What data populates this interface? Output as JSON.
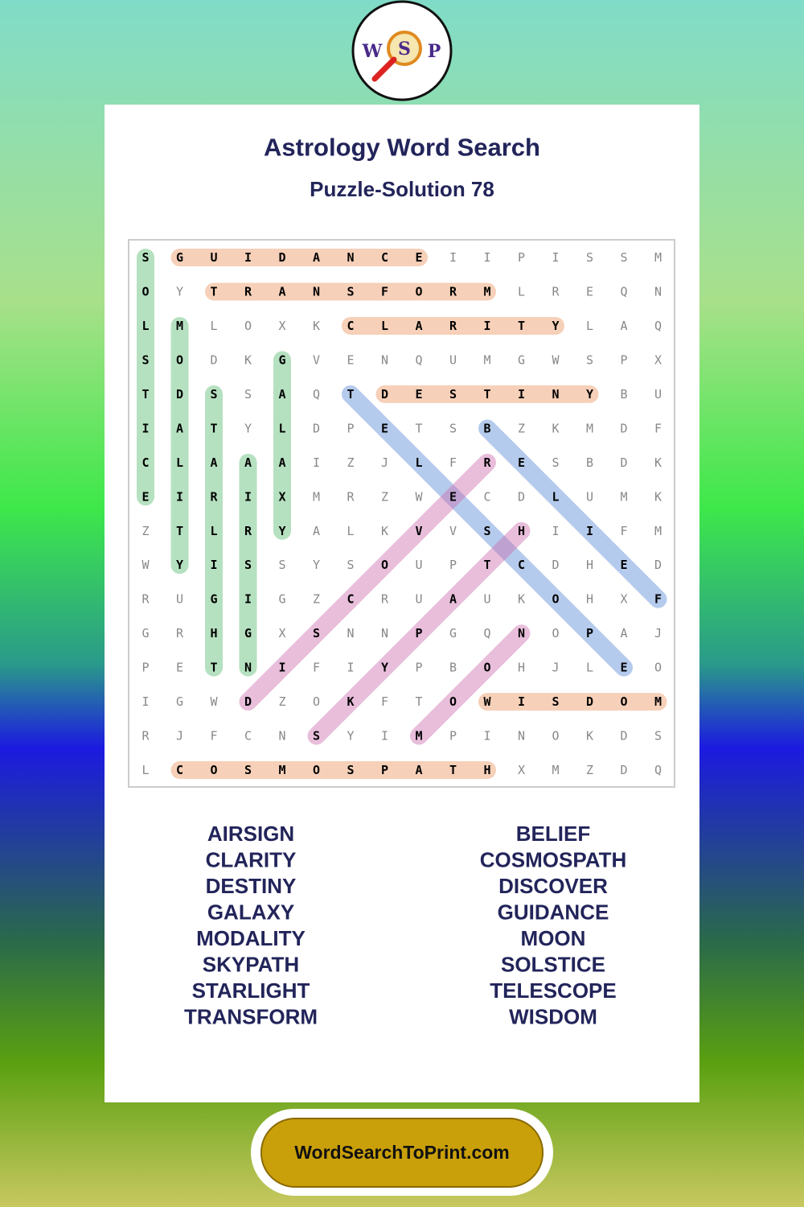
{
  "logo": {
    "letters": [
      "W",
      "S",
      "P"
    ]
  },
  "header": {
    "title": "Astrology Word Search",
    "subtitle": "Puzzle-Solution 78"
  },
  "grid": {
    "rows": [
      [
        "S",
        "G",
        "U",
        "I",
        "D",
        "A",
        "N",
        "C",
        "E",
        "I",
        "I",
        "P",
        "I",
        "S",
        "S",
        "M"
      ],
      [
        "O",
        "Y",
        "T",
        "R",
        "A",
        "N",
        "S",
        "F",
        "O",
        "R",
        "M",
        "L",
        "R",
        "E",
        "Q",
        "N"
      ],
      [
        "L",
        "M",
        "L",
        "O",
        "X",
        "K",
        "C",
        "L",
        "A",
        "R",
        "I",
        "T",
        "Y",
        "L",
        "A",
        "Q"
      ],
      [
        "S",
        "O",
        "D",
        "K",
        "G",
        "V",
        "E",
        "N",
        "Q",
        "U",
        "M",
        "G",
        "W",
        "S",
        "P",
        "X"
      ],
      [
        "T",
        "D",
        "S",
        "S",
        "A",
        "Q",
        "T",
        "D",
        "E",
        "S",
        "T",
        "I",
        "N",
        "Y",
        "B",
        "U"
      ],
      [
        "I",
        "A",
        "T",
        "Y",
        "L",
        "D",
        "P",
        "E",
        "T",
        "S",
        "B",
        "Z",
        "K",
        "M",
        "D",
        "F"
      ],
      [
        "C",
        "L",
        "A",
        "A",
        "A",
        "I",
        "Z",
        "J",
        "L",
        "F",
        "R",
        "E",
        "S",
        "B",
        "D",
        "K"
      ],
      [
        "E",
        "I",
        "R",
        "I",
        "X",
        "M",
        "R",
        "Z",
        "W",
        "E",
        "C",
        "D",
        "L",
        "U",
        "M",
        "K"
      ],
      [
        "Z",
        "T",
        "L",
        "R",
        "Y",
        "A",
        "L",
        "K",
        "V",
        "V",
        "S",
        "H",
        "I",
        "I",
        "F",
        "M"
      ],
      [
        "W",
        "Y",
        "I",
        "S",
        "S",
        "Y",
        "S",
        "O",
        "U",
        "P",
        "T",
        "C",
        "D",
        "H",
        "E",
        "D"
      ],
      [
        "R",
        "U",
        "G",
        "I",
        "G",
        "Z",
        "C",
        "R",
        "U",
        "A",
        "U",
        "K",
        "O",
        "H",
        "X",
        "F"
      ],
      [
        "G",
        "R",
        "H",
        "G",
        "X",
        "S",
        "N",
        "N",
        "P",
        "G",
        "Q",
        "N",
        "O",
        "P",
        "A",
        "J"
      ],
      [
        "P",
        "E",
        "T",
        "N",
        "I",
        "F",
        "I",
        "Y",
        "P",
        "B",
        "O",
        "H",
        "J",
        "L",
        "E",
        "O"
      ],
      [
        "I",
        "G",
        "W",
        "D",
        "Z",
        "O",
        "K",
        "F",
        "T",
        "O",
        "W",
        "I",
        "S",
        "D",
        "O",
        "M"
      ],
      [
        "R",
        "J",
        "F",
        "C",
        "N",
        "S",
        "Y",
        "I",
        "M",
        "P",
        "I",
        "N",
        "O",
        "K",
        "D",
        "S"
      ],
      [
        "L",
        "C",
        "O",
        "S",
        "M",
        "O",
        "S",
        "P",
        "A",
        "T",
        "H",
        "X",
        "M",
        "Z",
        "D",
        "Q"
      ]
    ]
  },
  "words": {
    "left": [
      "AIRSIGN",
      "CLARITY",
      "DESTINY",
      "GALAXY",
      "MODALITY",
      "SKYPATH",
      "STARLIGHT",
      "TRANSFORM"
    ],
    "right": [
      "BELIEF",
      "COSMOSPATH",
      "DISCOVER",
      "GUIDANCE",
      "MOON",
      "SOLSTICE",
      "TELESCOPE",
      "WISDOM"
    ]
  },
  "footer": {
    "site": "WordSearchToPrint.com"
  }
}
